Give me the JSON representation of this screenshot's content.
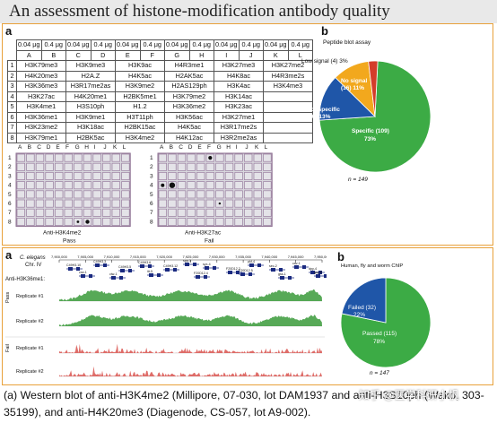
{
  "title": "An assessment of histone-modification antibody quality",
  "panel_top": {
    "label_a": "a",
    "label_b": "b",
    "table": {
      "header_amounts": [
        "0.04 μg",
        "0.4 μg",
        "0.04 μg",
        "0.4 μg",
        "0.04 μg",
        "0.4 μg",
        "0.04 μg",
        "0.4 μg",
        "0.04 μg",
        "0.4 μg",
        "0.04 μg",
        "0.4 μg"
      ],
      "columns": [
        "A",
        "B",
        "C",
        "D",
        "E",
        "F",
        "G",
        "H",
        "I",
        "J",
        "K",
        "L"
      ],
      "rows": [
        {
          "n": "1",
          "cells": [
            "H3K79me3",
            "H3K9me3",
            "H3K9ac",
            "H4R3me1",
            "H3K27me3",
            "H3K27me2"
          ]
        },
        {
          "n": "2",
          "cells": [
            "H4K20me3",
            "H2A.Z",
            "H4K5ac",
            "H2AK5ac",
            "H4K8ac",
            "H4R3me2s"
          ]
        },
        {
          "n": "3",
          "cells": [
            "H3K36me3",
            "H3R17me2as",
            "H3K9me2",
            "H2AS129ph",
            "H3K4ac",
            "H3K4me3"
          ]
        },
        {
          "n": "4",
          "cells": [
            "H3K27ac",
            "H4K20me1",
            "H2BK5me1",
            "H3K79me2",
            "H3K14ac",
            ""
          ]
        },
        {
          "n": "5",
          "cells": [
            "H3K4me1",
            "H3S10ph",
            "H1.2",
            "H3K36me2",
            "H3K23ac",
            ""
          ]
        },
        {
          "n": "6",
          "cells": [
            "H3K36me1",
            "H3K9me1",
            "H3T11ph",
            "H3K56ac",
            "H3K27me1",
            ""
          ]
        },
        {
          "n": "7",
          "cells": [
            "H3K23me2",
            "H3K18ac",
            "H2BK15ac",
            "H4K5ac",
            "H3R17me2s",
            ""
          ]
        },
        {
          "n": "8",
          "cells": [
            "H3K79me1",
            "H2BK5ac",
            "H3K4me2",
            "H4K12ac",
            "H3R2me2as",
            ""
          ]
        }
      ]
    },
    "blots": [
      {
        "letters": [
          "A",
          "B",
          "C",
          "D",
          "E",
          "F",
          "G",
          "H",
          "I",
          "J",
          "K",
          "L"
        ],
        "rows": [
          "1",
          "2",
          "3",
          "4",
          "5",
          "6",
          "7",
          "8"
        ],
        "title": "Anti-H3K4me2",
        "result": "Pass"
      },
      {
        "letters": [
          "A",
          "B",
          "C",
          "D",
          "E",
          "F",
          "G",
          "H",
          "I",
          "J",
          "K",
          "L"
        ],
        "rows": [
          "1",
          "2",
          "3",
          "4",
          "5",
          "6",
          "7",
          "8"
        ],
        "title": "Anti-H3K27ac",
        "result": "Fail"
      }
    ],
    "pie": {
      "title": "Peptide blot assay",
      "low_signal_label": "Low signal (4) 3%",
      "no_signal_label_1": "No signal",
      "no_signal_label_2": "(16) 11%",
      "not_specific_label_1": "Not specific",
      "not_specific_label_2": "(20) 13%",
      "specific_label_1": "Specific (109)",
      "specific_label_2": "73%",
      "n_label": "n = 149",
      "colors": {
        "specific": "#3cab45",
        "not_specific": "#1f56a8",
        "no_signal": "#f2a81d",
        "low_signal": "#d43c2a"
      }
    }
  },
  "panel_bottom": {
    "label_a": "a",
    "label_b": "b",
    "organism": "C. elegans",
    "chromosome": "Chr. IV",
    "antibody": "Anti-H3K36me1:",
    "coords": [
      "7,900,000",
      "7,905,000",
      "7,910,000",
      "7,915,000",
      "7,920,000",
      "7,925,000",
      "7,930,000",
      "7,935,000",
      "7,940,000",
      "7,945,000",
      "7,950,000"
    ],
    "genes": [
      "C49H3.10",
      "C49H3.3",
      "C49H3.5",
      "C49H3.6",
      "C49H3.12",
      "spp-1",
      "syx-4",
      "F20D12.2",
      "pkf-4",
      "sec-2",
      "cav-1",
      "dpy-4",
      "crw-1",
      "ctw-1",
      "itt-5",
      "F20D12.4",
      "F20D12.5",
      "gss-1",
      "gcy-8"
    ],
    "track_groups": [
      {
        "group": "Pass",
        "tracks": [
          "Replicate #1",
          "Replicate #2"
        ]
      },
      {
        "group": "Fail",
        "tracks": [
          "Replicate #1",
          "Replicate #2"
        ]
      }
    ],
    "pie": {
      "title": "Human, fly and worm ChIP",
      "failed_label_1": "Failed (32)",
      "failed_label_2": "22%",
      "passed_label_1": "Passed (115)",
      "passed_label_2": "78%",
      "n_label": "n = 147",
      "colors": {
        "passed": "#3cab45",
        "failed": "#1f56a8"
      }
    }
  },
  "caption": "(a) Western blot of anti-H3K4me2 (Millipore, 07-030, lot DAM1937 and anti-H3S10ph (Wako, 303-35199), and anti-H4K20me3 (Diagenode, CS-057, lot A9-002).",
  "watermark": "知乎 @医学科研小帆"
}
